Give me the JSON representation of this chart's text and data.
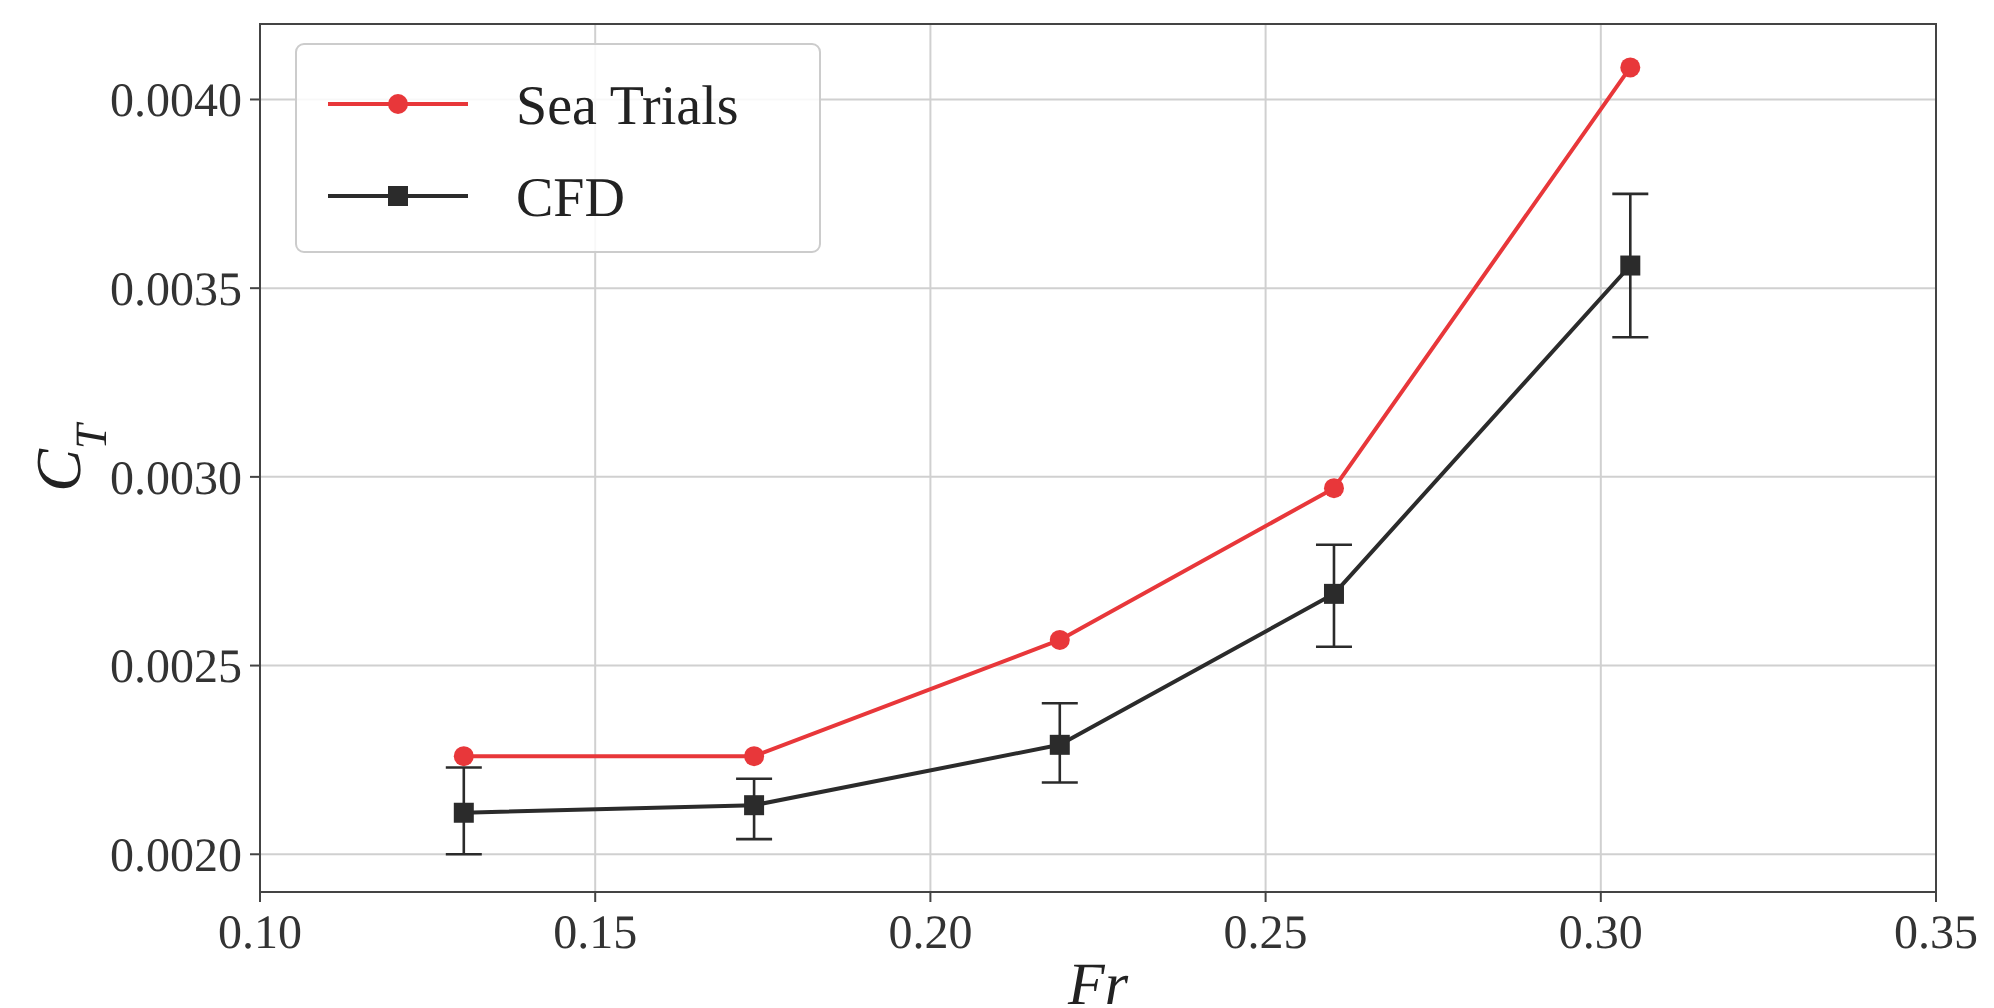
{
  "chart_data": {
    "type": "line",
    "xlabel": "Fr",
    "ylabel": "C$_{T}$",
    "x": [
      0.1304,
      0.1737,
      0.2193,
      0.2602,
      0.3044
    ],
    "series": [
      {
        "name": "Sea Trials",
        "color": "#e8373a",
        "marker": "circle",
        "values": [
          0.00226,
          0.00226,
          0.002568,
          0.00297,
          0.004085
        ]
      },
      {
        "name": "CFD",
        "color": "#2b2b2b",
        "marker": "square",
        "values": [
          0.00211,
          0.00213,
          0.00229,
          0.00269,
          0.00356
        ],
        "errors": [
          [
            0.002,
            0.00223
          ],
          [
            0.00204,
            0.0022
          ],
          [
            0.00219,
            0.0024
          ],
          [
            0.00255,
            0.00282
          ],
          [
            0.00337,
            0.00375
          ]
        ]
      }
    ],
    "xlim": [
      0.1,
      0.35
    ],
    "xticks": [
      {
        "value": 0.1,
        "label": "0.10"
      },
      {
        "value": 0.15,
        "label": "0.15"
      },
      {
        "value": 0.2,
        "label": "0.20"
      },
      {
        "value": 0.25,
        "label": "0.25"
      },
      {
        "value": 0.3,
        "label": "0.30"
      },
      {
        "value": 0.35,
        "label": "0.35"
      }
    ],
    "ylim": [
      0.0019,
      0.0042
    ],
    "yticks": [
      {
        "value": 0.002,
        "label": "0.0020"
      },
      {
        "value": 0.0025,
        "label": "0.0025"
      },
      {
        "value": 0.003,
        "label": "0.0030"
      },
      {
        "value": 0.0035,
        "label": "0.0035"
      },
      {
        "value": 0.004,
        "label": "0.0040"
      }
    ],
    "grid": true,
    "legend": "top left"
  }
}
